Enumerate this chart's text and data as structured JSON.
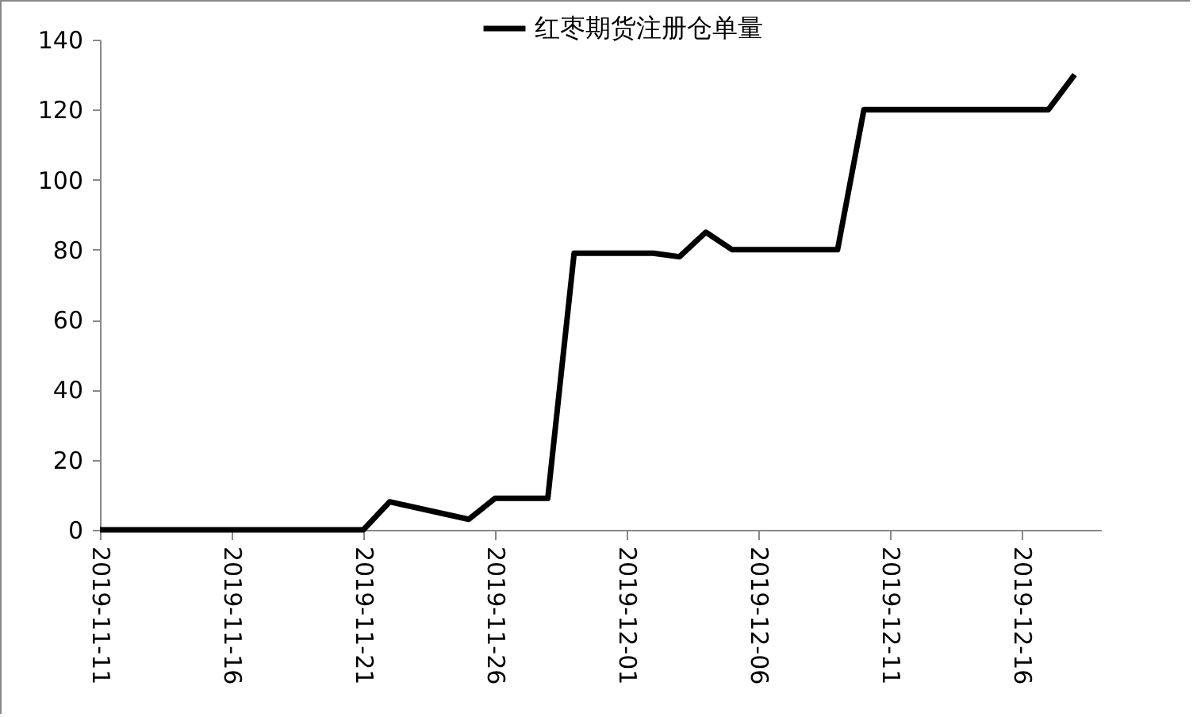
{
  "chart_data": {
    "type": "line",
    "x": [
      "2019-11-11",
      "2019-11-12",
      "2019-11-13",
      "2019-11-14",
      "2019-11-15",
      "2019-11-18",
      "2019-11-19",
      "2019-11-20",
      "2019-11-21",
      "2019-11-22",
      "2019-11-25",
      "2019-11-26",
      "2019-11-27",
      "2019-11-28",
      "2019-11-29",
      "2019-12-02",
      "2019-12-03",
      "2019-12-04",
      "2019-12-05",
      "2019-12-06",
      "2019-12-09",
      "2019-12-10",
      "2019-12-11",
      "2019-12-12",
      "2019-12-13",
      "2019-12-16",
      "2019-12-17",
      "2019-12-18"
    ],
    "series": [
      {
        "name": "红枣期货注册仓单量",
        "color": "#000000",
        "values": [
          0,
          0,
          0,
          0,
          0,
          0,
          0,
          0,
          0,
          8,
          3,
          9,
          9,
          9,
          79,
          79,
          78,
          85,
          80,
          80,
          80,
          120,
          120,
          120,
          120,
          120,
          120,
          130
        ]
      }
    ],
    "xlim": [
      "2019-11-11",
      "2019-12-19"
    ],
    "xticks": [
      "2019-11-11",
      "2019-11-16",
      "2019-11-21",
      "2019-11-26",
      "2019-12-01",
      "2019-12-06",
      "2019-12-11",
      "2019-12-16"
    ],
    "ylim": [
      0,
      140
    ],
    "yticks": [
      0,
      20,
      40,
      60,
      80,
      100,
      120,
      140
    ],
    "grid": false,
    "legend": "top",
    "marker": "none",
    "line_style": "solid"
  }
}
